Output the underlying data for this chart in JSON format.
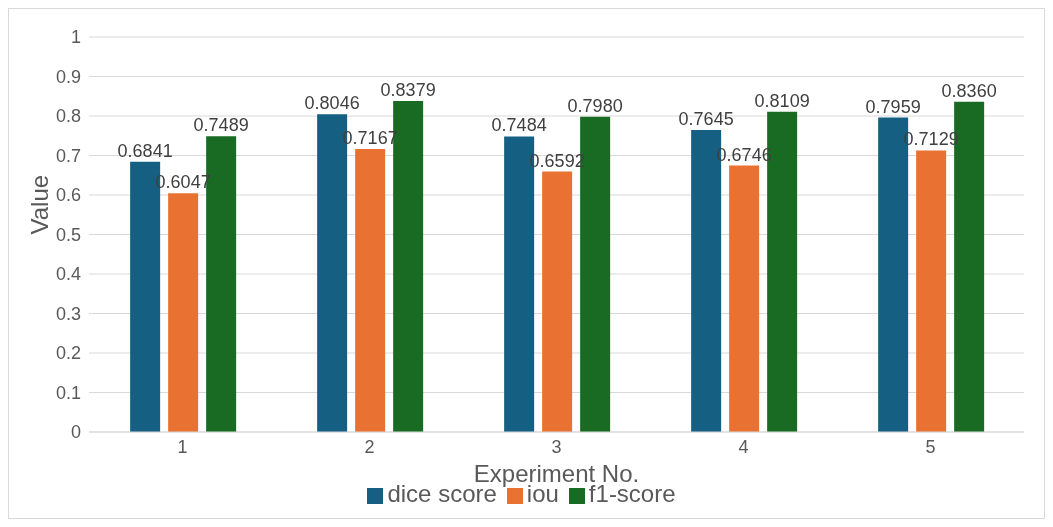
{
  "chart_data": {
    "type": "bar",
    "xlabel": "Experiment No.",
    "ylabel": "Value",
    "categories": [
      "1",
      "2",
      "3",
      "4",
      "5"
    ],
    "series": [
      {
        "name": "dice score",
        "color": "#156082",
        "values": [
          0.6841,
          0.8046,
          0.7484,
          0.7645,
          0.7959
        ],
        "value_labels": [
          "0.6841",
          "0.8046",
          "0.7484",
          "0.7645",
          "0.7959"
        ]
      },
      {
        "name": "iou",
        "color": "#e97132",
        "values": [
          0.6047,
          0.7167,
          0.6592,
          0.6746,
          0.7129
        ],
        "value_labels": [
          "0.6047",
          "0.7167",
          "0.6592",
          "0.6746",
          "0.7129"
        ]
      },
      {
        "name": "f1-score",
        "color": "#196b24",
        "values": [
          0.7489,
          0.8379,
          0.798,
          0.8109,
          0.836
        ],
        "value_labels": [
          "0.7489",
          "0.8379",
          "0.7980",
          "0.8109",
          "0.8360"
        ]
      }
    ],
    "ylim": [
      0,
      1
    ],
    "yticks": [
      0,
      0.1,
      0.2,
      0.3,
      0.4,
      0.5,
      0.6,
      0.7,
      0.8,
      0.9,
      1
    ],
    "grid": "y",
    "legend": "bottom"
  }
}
